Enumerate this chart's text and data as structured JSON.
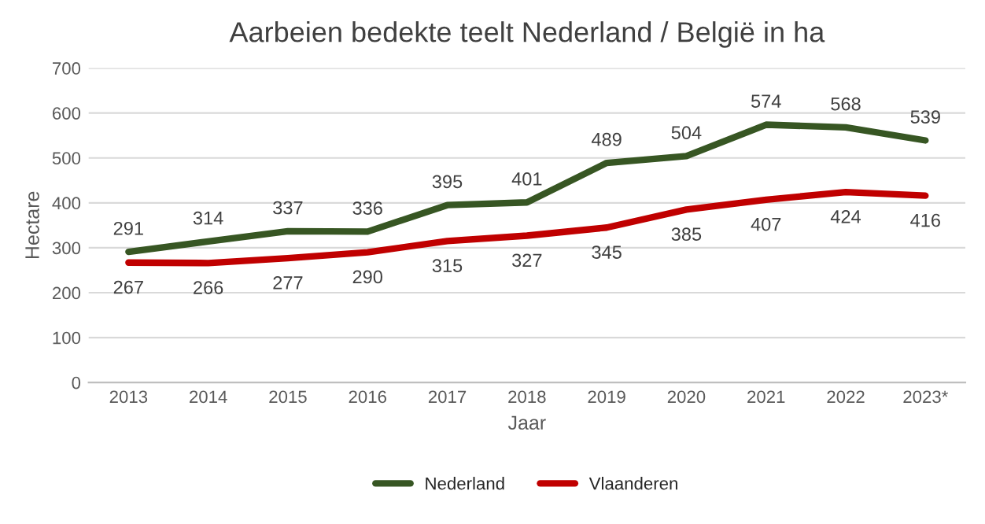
{
  "chart_data": {
    "type": "line",
    "title": "Aarbeien bedekte teelt Nederland / België in ha",
    "xlabel": "Jaar",
    "ylabel": "Hectare",
    "categories": [
      "2013",
      "2014",
      "2015",
      "2016",
      "2017",
      "2018",
      "2019",
      "2020",
      "2021",
      "2022",
      "2023*"
    ],
    "series": [
      {
        "name": "Nederland",
        "color": "#375623",
        "values": [
          291,
          314,
          337,
          336,
          395,
          401,
          489,
          504,
          574,
          568,
          539
        ]
      },
      {
        "name": "Vlaanderen",
        "color": "#c00000",
        "values": [
          267,
          266,
          277,
          290,
          315,
          327,
          345,
          385,
          407,
          424,
          416
        ]
      }
    ],
    "ylim": [
      0,
      700
    ],
    "yticks": [
      0,
      100,
      200,
      300,
      400,
      500,
      600,
      700
    ],
    "grid": "y",
    "legend": "bottom",
    "data_labels": true,
    "marker": "none",
    "line_style": "solid"
  }
}
